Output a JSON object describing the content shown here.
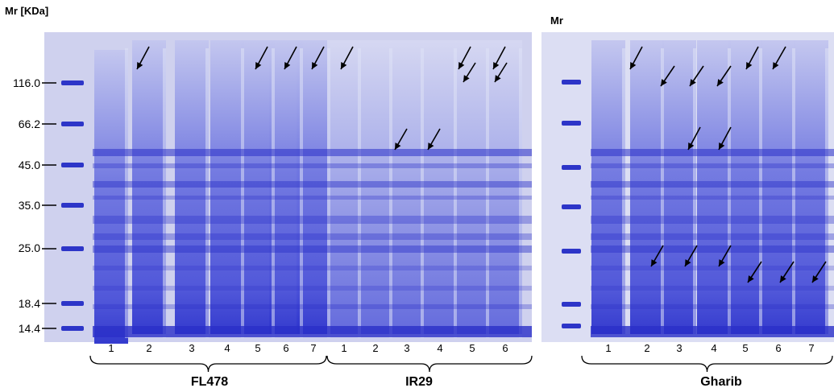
{
  "axis_title_left": "Mr [KDa]",
  "axis_title_right": "Mr",
  "markers": [
    "116.0",
    "66.2",
    "45.0",
    "35.0",
    "25.0",
    "18.4",
    "14.4"
  ],
  "groups": [
    {
      "name": "FL478",
      "lanes": [
        "1",
        "2",
        "3",
        "4",
        "5",
        "6",
        "7"
      ]
    },
    {
      "name": "IR29",
      "lanes": [
        "1",
        "2",
        "3",
        "4",
        "5",
        "6"
      ]
    },
    {
      "name": "Gharib",
      "lanes": [
        "1",
        "2",
        "3",
        "4",
        "5",
        "6",
        "7"
      ]
    }
  ],
  "colors": {
    "stain": "#3a3fd6",
    "stain_dark": "#1f24b8",
    "gel_bg": "#c9ccea",
    "marker_band": "#2d35c8"
  }
}
